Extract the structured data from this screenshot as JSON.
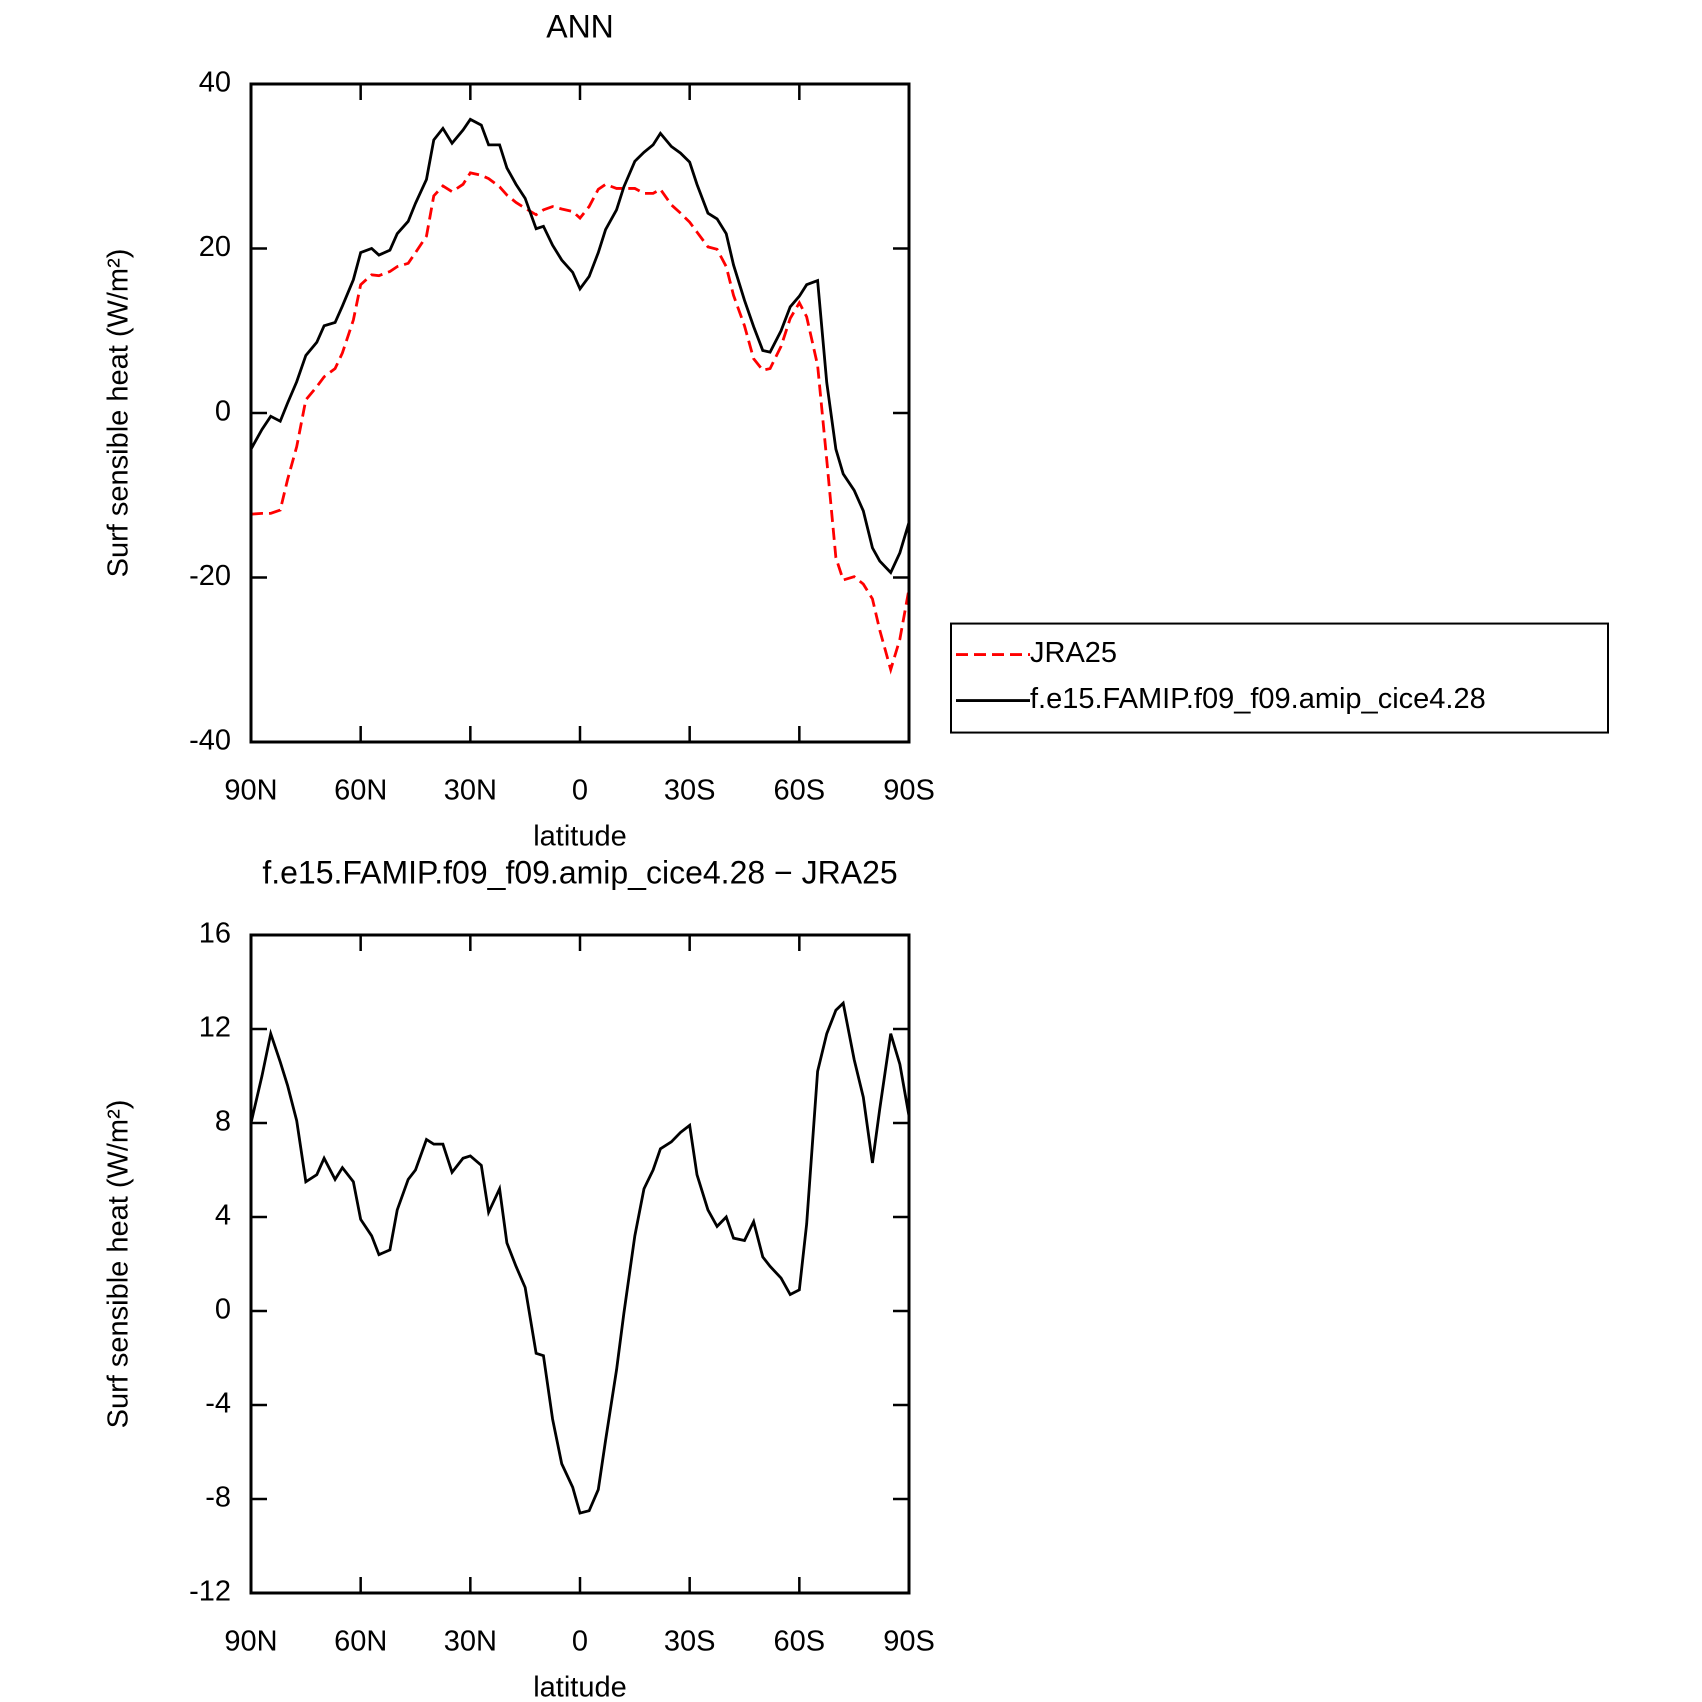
{
  "chart_data": [
    {
      "type": "line",
      "title": "ANN",
      "ylabel": "Surf sensible heat (W/m²)",
      "xlabel": "latitude",
      "xlim": [
        90,
        -90
      ],
      "xticks": [
        {
          "value": 90,
          "label": "90N"
        },
        {
          "value": 60,
          "label": "60N"
        },
        {
          "value": 30,
          "label": "30N"
        },
        0,
        {
          "value": -30,
          "label": "30S"
        },
        {
          "value": -60,
          "label": "60S"
        },
        {
          "value": -90,
          "label": "90S"
        }
      ],
      "ylim": [
        -40,
        40
      ],
      "yticks": [
        -40,
        -20,
        0,
        20,
        40
      ],
      "legend": "right",
      "x": [
        90,
        87,
        84.6,
        82,
        80,
        77.5,
        75,
        72,
        70,
        67,
        65,
        62,
        60,
        57,
        55,
        52,
        50,
        47,
        45,
        42,
        40,
        37.5,
        35,
        32,
        30,
        27,
        25,
        22,
        20,
        17.5,
        15,
        12,
        10,
        7.5,
        5,
        2,
        0,
        -2.5,
        -5,
        -7,
        -10,
        -12,
        -15,
        -17.5,
        -20,
        -22,
        -25,
        -27.5,
        -30,
        -32,
        -35,
        -37.5,
        -40,
        -42,
        -45,
        -47.5,
        -50,
        -52,
        -55,
        -57.5,
        -60,
        -62,
        -65,
        -67.5,
        -70,
        -72,
        -75,
        -77.5,
        -80,
        -82,
        -85,
        -87.5,
        -90
      ],
      "series": [
        {
          "name": "JRA25",
          "color": "#ff0000",
          "dashed": true,
          "values": [
            -12.3,
            -12.2,
            -12.2,
            -11.8,
            -8.1,
            -4.1,
            1.6,
            3.2,
            4.4,
            5.4,
            7.3,
            11.3,
            15.6,
            16.8,
            16.7,
            17.2,
            17.8,
            18.2,
            19.5,
            21.5,
            26.4,
            27.6,
            26.9,
            27.8,
            29.2,
            28.9,
            28.5,
            27.5,
            26.5,
            25.6,
            24.9,
            24.1,
            24.7,
            25.1,
            24.8,
            24.5,
            23.7,
            25.1,
            27.2,
            27.8,
            27.3,
            27.3,
            27.3,
            26.7,
            26.7,
            27.2,
            25.3,
            24.3,
            23.2,
            22,
            20.2,
            19.9,
            17.8,
            14.3,
            10.6,
            6.6,
            5.2,
            5.4,
            8.1,
            11.5,
            13.4,
            11.7,
            5.8,
            -5.7,
            -17.6,
            -20.3,
            -19.9,
            -20.8,
            -22.6,
            -26.4,
            -31.2,
            -27.5,
            -21.4
          ]
        },
        {
          "name": "f.e15.FAMIP.f09_f09.amip_cice4.28",
          "color": "#000000",
          "dashed": false,
          "values": [
            -4.4,
            -2,
            -0.4,
            -1,
            1.2,
            3.8,
            7,
            8.6,
            10.6,
            11,
            13,
            16.2,
            19.5,
            20,
            19.2,
            19.8,
            21.8,
            23.3,
            25.5,
            28.4,
            33.2,
            34.6,
            32.8,
            34.4,
            35.7,
            35,
            32.6,
            32.6,
            29.8,
            27.8,
            26.1,
            22.4,
            22.7,
            20.4,
            18.6,
            17.1,
            15.1,
            16.6,
            19.5,
            22.3,
            24.7,
            27.5,
            30.6,
            31.7,
            32.6,
            34,
            32.4,
            31.6,
            30.5,
            27.8,
            24.3,
            23.6,
            21.8,
            18,
            13.7,
            10.5,
            7.6,
            7.4,
            10,
            12.9,
            14.2,
            15.6,
            16.1,
            3.7,
            -4.4,
            -7.4,
            -9.4,
            -11.9,
            -16.4,
            -18,
            -19.4,
            -17,
            -13.3
          ]
        }
      ]
    },
    {
      "type": "line",
      "title": "f.e15.FAMIP.f09_f09.amip_cice4.28 − JRA25",
      "ylabel": "Surf sensible heat (W/m²)",
      "xlabel": "latitude",
      "xlim": [
        90,
        -90
      ],
      "xticks": [
        {
          "value": 90,
          "label": "90N"
        },
        {
          "value": 60,
          "label": "60N"
        },
        {
          "value": 30,
          "label": "30N"
        },
        0,
        {
          "value": -30,
          "label": "30S"
        },
        {
          "value": -60,
          "label": "60S"
        },
        {
          "value": -90,
          "label": "90S"
        }
      ],
      "ylim": [
        -12,
        16
      ],
      "yticks": [
        -12,
        -8,
        -4,
        0,
        4,
        8,
        12,
        16
      ],
      "x": [
        90,
        87,
        84.6,
        82,
        80,
        77.5,
        75,
        72,
        70,
        67,
        65,
        62,
        60,
        57,
        55,
        52,
        50,
        47,
        45,
        42,
        40,
        37.5,
        35,
        32,
        30,
        27,
        25,
        22,
        20,
        17.5,
        15,
        12,
        10,
        7.5,
        5,
        2,
        0,
        -2.5,
        -5,
        -7,
        -10,
        -12,
        -15,
        -17.5,
        -20,
        -22,
        -25,
        -27.5,
        -30,
        -32,
        -35,
        -37.5,
        -40,
        -42,
        -45,
        -47.5,
        -50,
        -52,
        -55,
        -57.5,
        -60,
        -62,
        -65,
        -67.5,
        -70,
        -72,
        -75,
        -77.5,
        -80,
        -82,
        -85,
        -87.5,
        -90
      ],
      "series": [
        {
          "color": "#000000",
          "dashed": false,
          "values": [
            8.0,
            10.0,
            11.8,
            10.6,
            9.6,
            8.1,
            5.5,
            5.8,
            6.5,
            5.6,
            6.1,
            5.5,
            3.9,
            3.2,
            2.4,
            2.6,
            4.3,
            5.6,
            6.0,
            7.3,
            7.1,
            7.1,
            5.9,
            6.5,
            6.6,
            6.2,
            4.2,
            5.2,
            2.9,
            1.9,
            1.0,
            -1.8,
            -1.9,
            -4.6,
            -6.5,
            -7.5,
            -8.6,
            -8.5,
            -7.6,
            -5.5,
            -2.5,
            -0.1,
            3.2,
            5.2,
            6.0,
            6.9,
            7.2,
            7.6,
            7.9,
            5.8,
            4.3,
            3.6,
            4.0,
            3.1,
            3.0,
            3.8,
            2.3,
            1.9,
            1.4,
            0.7,
            0.9,
            3.7,
            10.2,
            11.8,
            12.8,
            13.1,
            10.7,
            9.1,
            6.3,
            8.6,
            11.8,
            10.5,
            8.3
          ]
        }
      ]
    }
  ]
}
